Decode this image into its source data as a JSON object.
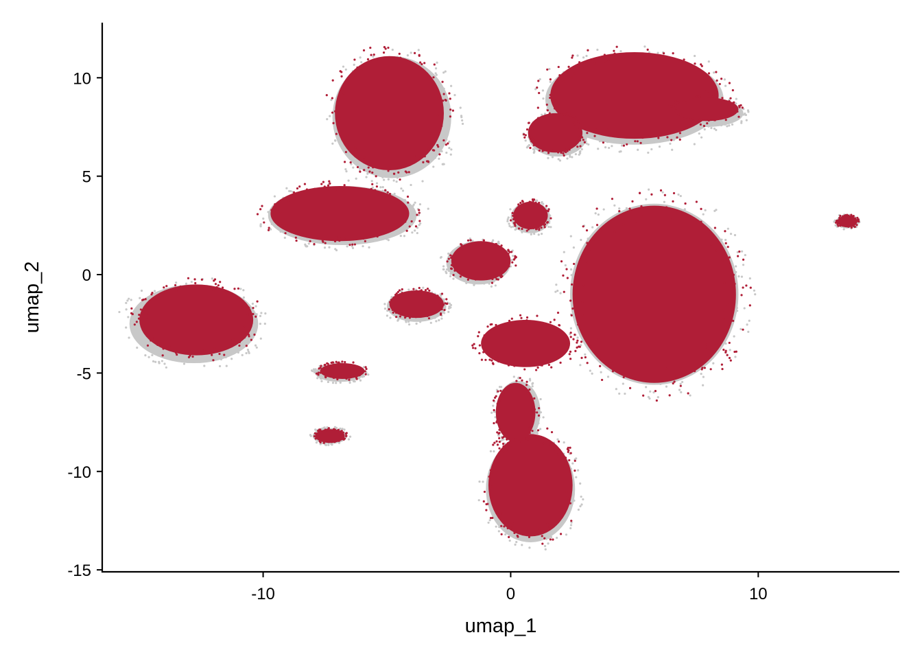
{
  "chart_data": {
    "type": "scatter",
    "title": "",
    "xlabel": "umap_1",
    "ylabel": "umap_2",
    "xlim": [
      -16.5,
      15.7
    ],
    "ylim": [
      -15.1,
      12.8
    ],
    "xticks": [
      -10,
      0,
      10
    ],
    "xtick_labels": [
      "-10",
      "0",
      "10"
    ],
    "yticks": [
      -15,
      -10,
      -5,
      0,
      5,
      10
    ],
    "ytick_labels": [
      "-15",
      "-10",
      "-5",
      "0",
      "5",
      "10"
    ],
    "grid": false,
    "legend": "none",
    "colors": {
      "highlighted": "#B01E37",
      "background": "#C8C8C8"
    },
    "series": [
      {
        "role": "background",
        "clusters": [
          {
            "cx": -4.8,
            "cy": 8.0,
            "rx": 2.4,
            "ry": 3.1
          },
          {
            "cx": 5.0,
            "cy": 8.9,
            "rx": 3.6,
            "ry": 2.3
          },
          {
            "cx": 1.9,
            "cy": 7.1,
            "rx": 1.2,
            "ry": 1.1
          },
          {
            "cx": 7.9,
            "cy": 8.2,
            "rx": 1.5,
            "ry": 0.7
          },
          {
            "cx": -6.8,
            "cy": 3.0,
            "rx": 3.0,
            "ry": 1.5
          },
          {
            "cx": -12.8,
            "cy": -2.5,
            "rx": 2.6,
            "ry": 2.0
          },
          {
            "cx": 5.8,
            "cy": -1.0,
            "rx": 3.4,
            "ry": 4.6
          },
          {
            "cx": 0.8,
            "cy": -10.9,
            "rx": 1.8,
            "ry": 2.7
          },
          {
            "cx": 0.3,
            "cy": -7.0,
            "rx": 0.9,
            "ry": 1.6
          },
          {
            "cx": -3.8,
            "cy": -1.6,
            "rx": 1.2,
            "ry": 0.8
          },
          {
            "cx": -6.9,
            "cy": -5.0,
            "rx": 1.0,
            "ry": 0.45
          },
          {
            "cx": -7.3,
            "cy": -8.2,
            "rx": 0.7,
            "ry": 0.4
          },
          {
            "cx": 13.6,
            "cy": 2.7,
            "rx": 0.45,
            "ry": 0.35
          },
          {
            "cx": 0.8,
            "cy": 2.9,
            "rx": 0.8,
            "ry": 0.8
          },
          {
            "cx": -1.3,
            "cy": 0.6,
            "rx": 1.3,
            "ry": 1.1
          }
        ]
      },
      {
        "role": "highlighted",
        "clusters": [
          {
            "cx": -4.9,
            "cy": 8.2,
            "rx": 2.2,
            "ry": 2.9
          },
          {
            "cx": 5.0,
            "cy": 9.1,
            "rx": 3.4,
            "ry": 2.2
          },
          {
            "cx": 1.8,
            "cy": 7.2,
            "rx": 1.1,
            "ry": 1.0
          },
          {
            "cx": 7.9,
            "cy": 8.4,
            "rx": 1.3,
            "ry": 0.6
          },
          {
            "cx": -6.9,
            "cy": 3.1,
            "rx": 2.8,
            "ry": 1.4
          },
          {
            "cx": -12.7,
            "cy": -2.3,
            "rx": 2.3,
            "ry": 1.8
          },
          {
            "cx": 5.8,
            "cy": -1.0,
            "rx": 3.3,
            "ry": 4.5
          },
          {
            "cx": 0.8,
            "cy": -10.7,
            "rx": 1.7,
            "ry": 2.6
          },
          {
            "cx": 0.2,
            "cy": -7.0,
            "rx": 0.8,
            "ry": 1.5
          },
          {
            "cx": -3.8,
            "cy": -1.5,
            "rx": 1.1,
            "ry": 0.7
          },
          {
            "cx": -6.8,
            "cy": -4.9,
            "rx": 0.9,
            "ry": 0.4
          },
          {
            "cx": -7.3,
            "cy": -8.2,
            "rx": 0.6,
            "ry": 0.35
          },
          {
            "cx": 13.6,
            "cy": 2.7,
            "rx": 0.4,
            "ry": 0.3
          },
          {
            "cx": 0.8,
            "cy": 3.0,
            "rx": 0.7,
            "ry": 0.7
          },
          {
            "cx": -1.2,
            "cy": 0.7,
            "rx": 1.2,
            "ry": 1.0
          },
          {
            "cx": 0.6,
            "cy": -3.5,
            "rx": 1.8,
            "ry": 1.2
          }
        ]
      }
    ]
  }
}
